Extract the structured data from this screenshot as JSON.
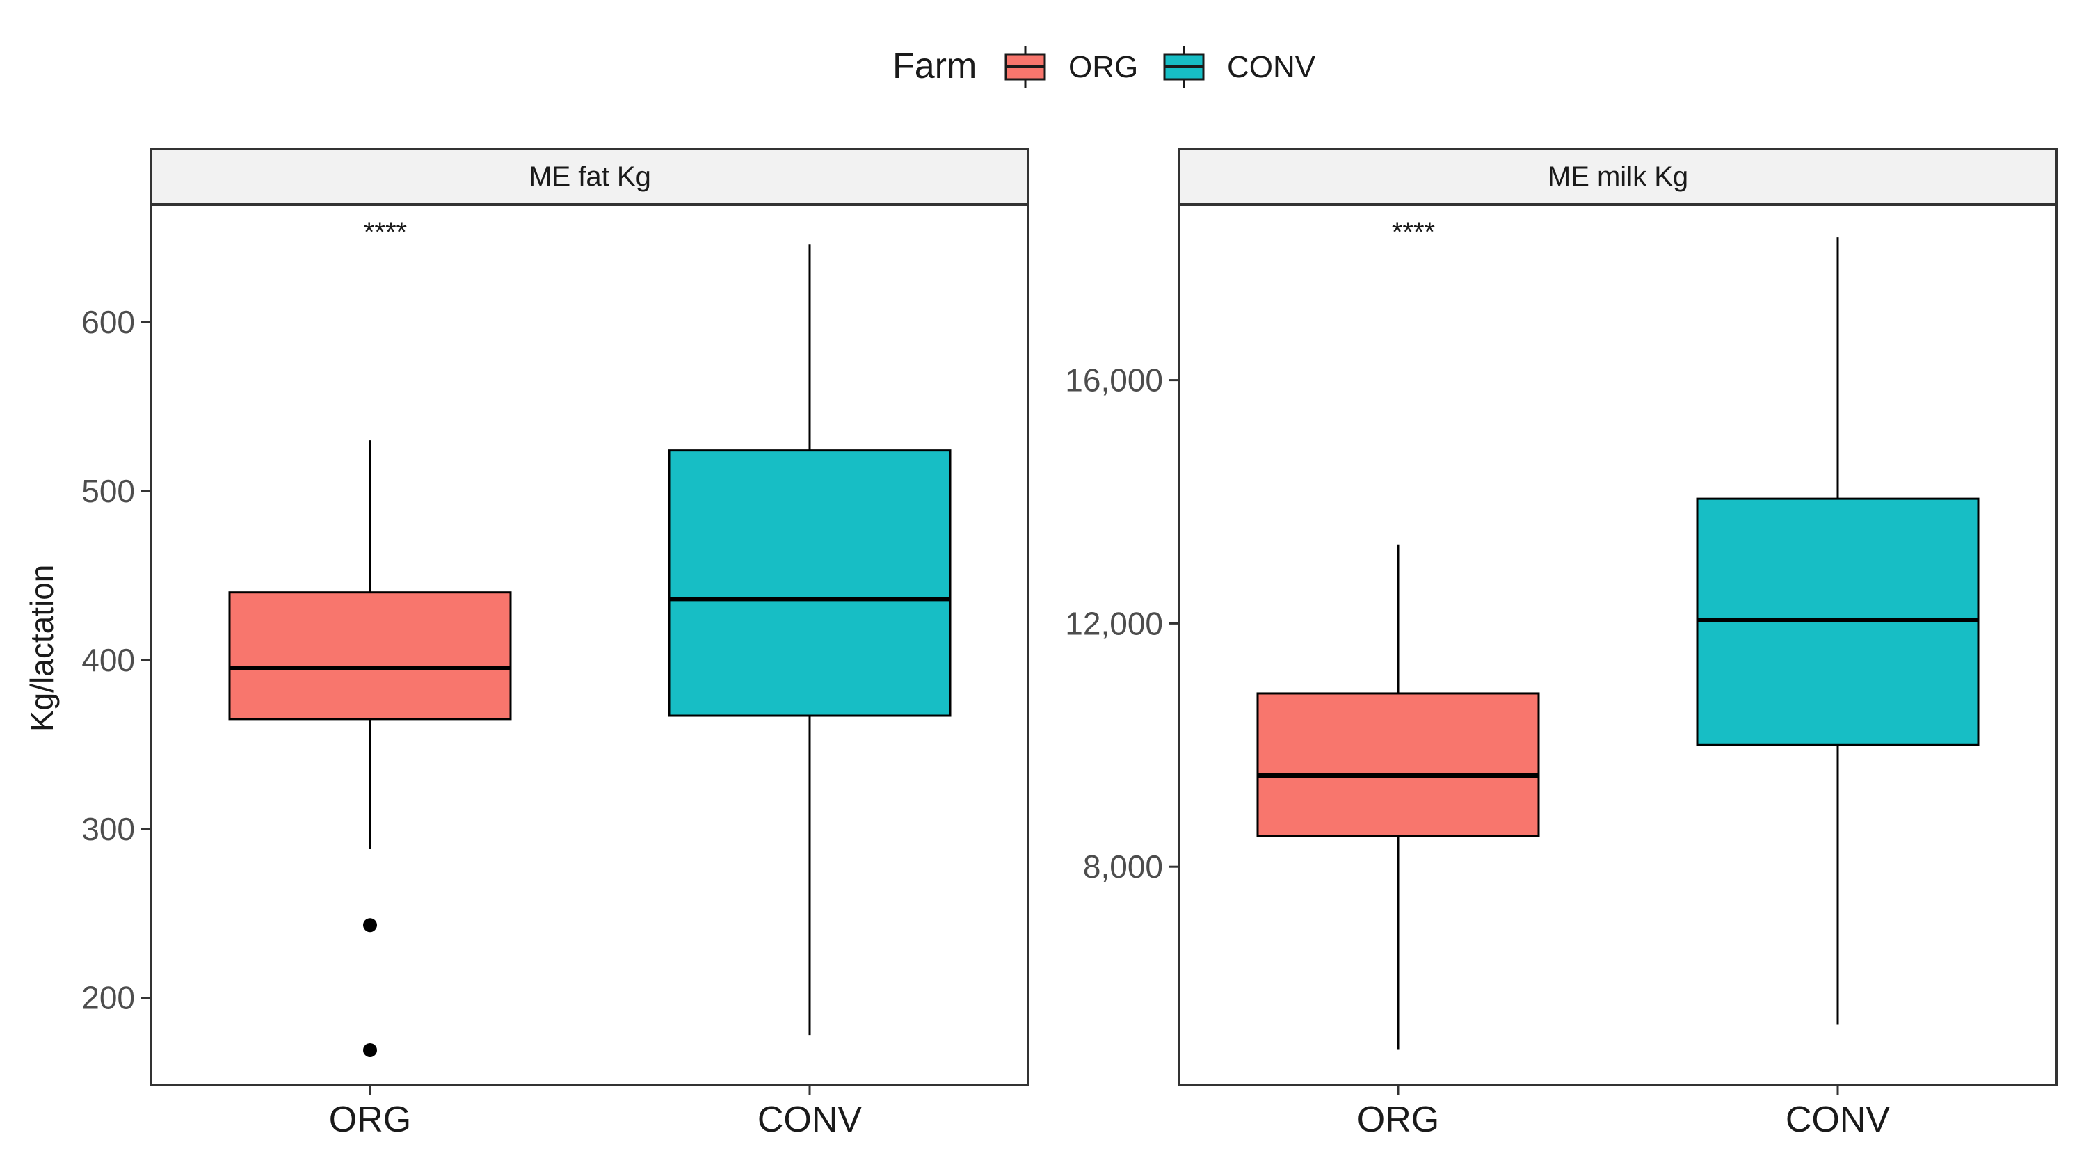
{
  "legend": {
    "title": "Farm",
    "items": [
      {
        "label": "ORG",
        "color": "#F8766D"
      },
      {
        "label": "CONV",
        "color": "#17BEC5"
      }
    ]
  },
  "y_axis_title": "Kg/lactation",
  "chart_data": [
    {
      "type": "boxplot",
      "title": "ME fat Kg",
      "categories": [
        "ORG",
        "CONV"
      ],
      "ylim": [
        148,
        670
      ],
      "yticks": [
        200,
        300,
        400,
        500,
        600
      ],
      "ytick_labels": [
        "200",
        "300",
        "400",
        "500",
        "600"
      ],
      "significance": {
        "label": "****",
        "category": "ORG"
      },
      "boxes": [
        {
          "category": "ORG",
          "color": "#F8766D",
          "whisker_low": 288,
          "q1": 365,
          "median": 395,
          "q3": 440,
          "whisker_high": 530,
          "outliers": [
            243,
            169
          ]
        },
        {
          "category": "CONV",
          "color": "#17BEC5",
          "whisker_low": 178,
          "q1": 367,
          "median": 436,
          "q3": 524,
          "whisker_high": 646,
          "outliers": []
        }
      ]
    },
    {
      "type": "boxplot",
      "title": "ME milk Kg",
      "categories": [
        "ORG",
        "CONV"
      ],
      "ylim": [
        4400,
        18900
      ],
      "yticks": [
        8000,
        12000,
        16000
      ],
      "ytick_labels": [
        "8,000",
        "12,000",
        "16,000"
      ],
      "significance": {
        "label": "****",
        "category": "ORG"
      },
      "boxes": [
        {
          "category": "ORG",
          "color": "#F8766D",
          "whisker_low": 5000,
          "q1": 8500,
          "median": 9500,
          "q3": 10850,
          "whisker_high": 13300,
          "outliers": []
        },
        {
          "category": "CONV",
          "color": "#17BEC5",
          "whisker_low": 5400,
          "q1": 10000,
          "median": 12050,
          "q3": 14050,
          "whisker_high": 18350,
          "outliers": []
        }
      ]
    }
  ]
}
